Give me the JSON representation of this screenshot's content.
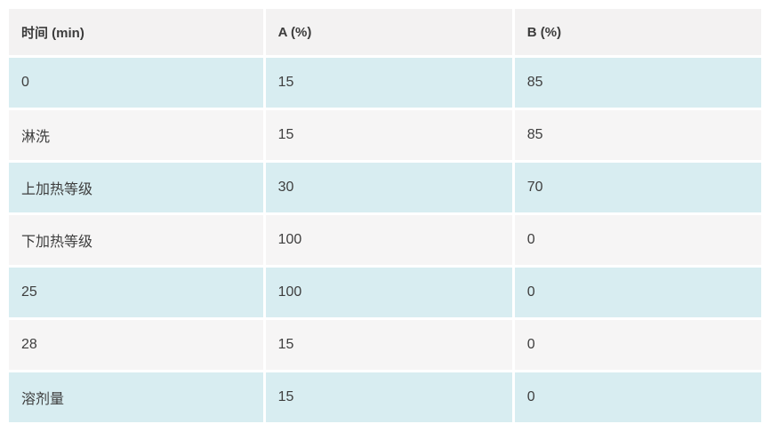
{
  "table": {
    "name": "gradient-parameters-table",
    "columns": [
      "时间 (min)",
      "A (%)",
      "B (%)"
    ],
    "rows": [
      [
        "0",
        "15",
        "85"
      ],
      [
        "淋洗",
        "15",
        "85"
      ],
      [
        "上加热等级",
        "30",
        "70"
      ],
      [
        "下加热等级",
        "100",
        "0"
      ],
      [
        "25",
        "100",
        "0"
      ],
      [
        "28",
        "15",
        "0"
      ],
      [
        "溶剂量",
        "15",
        "0"
      ]
    ],
    "row_styles": [
      "accent",
      "plain",
      "accent",
      "plain",
      "accent",
      "plain",
      "accent"
    ]
  },
  "colors": {
    "header_bg": "#f3f2f2",
    "row_accent_bg": "#d8edf1",
    "row_plain_bg": "#f6f5f5",
    "text": "#3e3e3e",
    "page_bg": "#ffffff",
    "cell_gap": "#ffffff"
  }
}
